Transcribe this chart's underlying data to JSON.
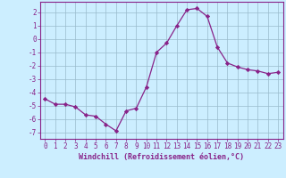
{
  "x": [
    0,
    1,
    2,
    3,
    4,
    5,
    6,
    7,
    8,
    9,
    10,
    11,
    12,
    13,
    14,
    15,
    16,
    17,
    18,
    19,
    20,
    21,
    22,
    23
  ],
  "y": [
    -4.5,
    -4.9,
    -4.9,
    -5.1,
    -5.7,
    -5.8,
    -6.4,
    -6.9,
    -5.4,
    -5.2,
    -3.6,
    -1.0,
    -0.3,
    1.0,
    2.2,
    2.3,
    1.7,
    -0.6,
    -1.8,
    -2.1,
    -2.3,
    -2.4,
    -2.6,
    -2.5
  ],
  "line_color": "#882288",
  "marker": "D",
  "marker_size": 2.2,
  "bg_color": "#cceeff",
  "grid_color": "#99bbcc",
  "xlabel": "Windchill (Refroidissement éolien,°C)",
  "ylim": [
    -7.5,
    2.8
  ],
  "xlim": [
    -0.5,
    23.5
  ],
  "yticks": [
    -7,
    -6,
    -5,
    -4,
    -3,
    -2,
    -1,
    0,
    1,
    2
  ],
  "xticks": [
    0,
    1,
    2,
    3,
    4,
    5,
    6,
    7,
    8,
    9,
    10,
    11,
    12,
    13,
    14,
    15,
    16,
    17,
    18,
    19,
    20,
    21,
    22,
    23
  ],
  "tick_color": "#882288",
  "spine_color": "#882288",
  "label_fontsize": 6.0,
  "tick_fontsize": 5.5
}
